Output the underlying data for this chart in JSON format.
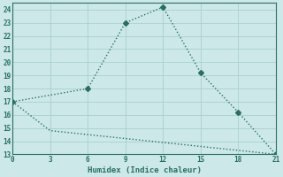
{
  "xlabel": "Humidex (Indice chaleur)",
  "line1_x": [
    0,
    6,
    9,
    12,
    15,
    18,
    21
  ],
  "line1_y": [
    17,
    18,
    23,
    24.2,
    19.2,
    16.2,
    13
  ],
  "line2_x": [
    0,
    3,
    21
  ],
  "line2_y": [
    17,
    14.8,
    13
  ],
  "line_color": "#2a6e62",
  "bg_color": "#cce8e8",
  "grid_color": "#aacfcf",
  "xlim": [
    0,
    21
  ],
  "ylim": [
    13,
    24.5
  ],
  "xticks": [
    0,
    3,
    6,
    9,
    12,
    15,
    18,
    21
  ],
  "yticks": [
    13,
    14,
    15,
    16,
    17,
    18,
    19,
    20,
    21,
    22,
    23,
    24
  ],
  "marker": "D",
  "markersize": 3,
  "linewidth": 1.0
}
